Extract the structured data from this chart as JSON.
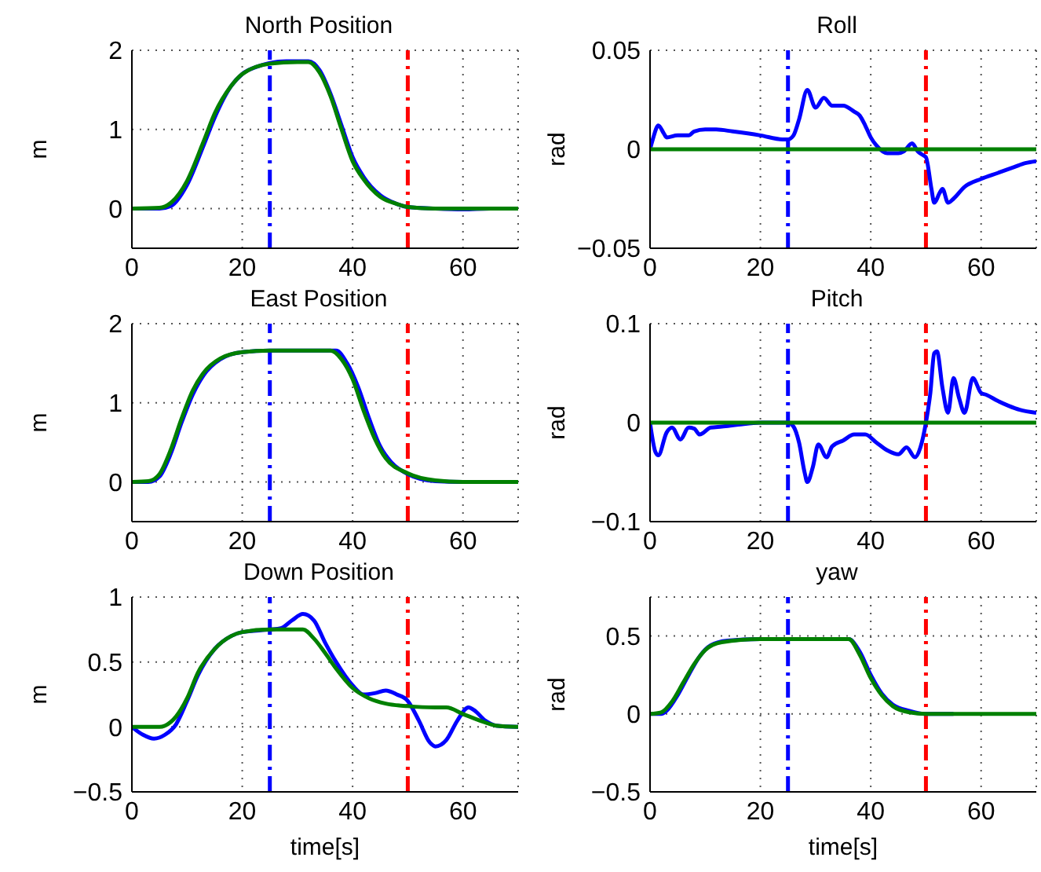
{
  "chart_data": [
    {
      "type": "line",
      "title": "North Position",
      "ylabel": "m",
      "xlim": [
        0,
        70
      ],
      "xticks": [
        0,
        20,
        40,
        60
      ],
      "ylim": [
        -0.5,
        2
      ],
      "yticks": [
        0,
        1,
        2
      ],
      "grid": true,
      "legend": false,
      "line_style": "solid",
      "marker": "none",
      "series": [
        {
          "color": "#0000ff",
          "x": [
            0,
            5,
            7,
            10,
            13,
            15,
            18,
            20,
            23,
            25,
            28,
            32,
            34,
            36,
            38,
            40,
            42,
            45,
            48,
            50,
            55,
            60,
            65,
            70
          ],
          "values": [
            0,
            0,
            0.03,
            0.3,
            0.8,
            1.15,
            1.55,
            1.7,
            1.8,
            1.84,
            1.86,
            1.86,
            1.75,
            1.45,
            1.05,
            0.65,
            0.4,
            0.17,
            0.06,
            0.02,
            0,
            -0.01,
            0,
            0
          ]
        },
        {
          "color": "#008000",
          "x": [
            0,
            5,
            7,
            10,
            13,
            15,
            18,
            20,
            25,
            30,
            32,
            34,
            36,
            38,
            40,
            42,
            45,
            48,
            50,
            55,
            70
          ],
          "values": [
            0,
            0.01,
            0.07,
            0.35,
            0.85,
            1.2,
            1.55,
            1.7,
            1.83,
            1.85,
            1.85,
            1.72,
            1.42,
            1.0,
            0.6,
            0.37,
            0.15,
            0.06,
            0.02,
            0,
            0
          ]
        }
      ],
      "ref_lines": [
        {
          "axis": "x",
          "value": 25,
          "color": "#0000ff",
          "line_style": "dashed"
        },
        {
          "axis": "x",
          "value": 50,
          "color": "#ff0000",
          "line_style": "dashed"
        }
      ]
    },
    {
      "type": "line",
      "title": "Roll",
      "ylabel": "rad",
      "xlim": [
        0,
        70
      ],
      "xticks": [
        0,
        20,
        40,
        60
      ],
      "ylim": [
        -0.05,
        0.05
      ],
      "yticks": [
        -0.05,
        0,
        0.05
      ],
      "grid": true,
      "legend": false,
      "line_style": "solid",
      "marker": "none",
      "series": [
        {
          "color": "#0000ff",
          "x": [
            0,
            0.5,
            1.5,
            2.5,
            3,
            5,
            7,
            8,
            10,
            12,
            15,
            20,
            24,
            25,
            26,
            27,
            28.5,
            30,
            31.5,
            33,
            35,
            37,
            38,
            39,
            40,
            41,
            43,
            45,
            46,
            47.5,
            48.5,
            49.5,
            50,
            51,
            51.5,
            52.5,
            53,
            54,
            55,
            57,
            60,
            63,
            66,
            68,
            70
          ],
          "values": [
            0,
            0.005,
            0.012,
            0.008,
            0.006,
            0.007,
            0.007,
            0.009,
            0.01,
            0.01,
            0.009,
            0.007,
            0.005,
            0.005,
            0.007,
            0.015,
            0.03,
            0.021,
            0.026,
            0.022,
            0.022,
            0.019,
            0.017,
            0.012,
            0.006,
            0.002,
            -0.002,
            -0.002,
            -0.001,
            0.003,
            -0.001,
            -0.003,
            -0.004,
            -0.02,
            -0.027,
            -0.022,
            -0.02,
            -0.027,
            -0.025,
            -0.019,
            -0.015,
            -0.012,
            -0.009,
            -0.007,
            -0.006
          ]
        },
        {
          "color": "#008000",
          "x": [
            0,
            70
          ],
          "values": [
            0,
            0
          ]
        }
      ],
      "ref_lines": [
        {
          "axis": "x",
          "value": 25,
          "color": "#0000ff",
          "line_style": "dashed"
        },
        {
          "axis": "x",
          "value": 50,
          "color": "#ff0000",
          "line_style": "dashed"
        }
      ]
    },
    {
      "type": "line",
      "title": "East Position",
      "ylabel": "m",
      "xlim": [
        0,
        70
      ],
      "xticks": [
        0,
        20,
        40,
        60
      ],
      "ylim": [
        -0.5,
        2
      ],
      "yticks": [
        0,
        1,
        2
      ],
      "grid": true,
      "legend": false,
      "line_style": "solid",
      "marker": "none",
      "series": [
        {
          "color": "#0000ff",
          "x": [
            0,
            3,
            5,
            7,
            9,
            11,
            13,
            16,
            20,
            25,
            37,
            39,
            41,
            43,
            45,
            47,
            50,
            55,
            60,
            70
          ],
          "values": [
            0,
            0,
            0.07,
            0.35,
            0.75,
            1.1,
            1.35,
            1.55,
            1.64,
            1.66,
            1.66,
            1.5,
            1.2,
            0.8,
            0.45,
            0.25,
            0.1,
            0.01,
            0,
            0
          ]
        },
        {
          "color": "#008000",
          "x": [
            0,
            3,
            5,
            7,
            9,
            11,
            13,
            16,
            20,
            25,
            36,
            38,
            40,
            42,
            44,
            46,
            50,
            55,
            60,
            70
          ],
          "values": [
            0,
            0.01,
            0.1,
            0.4,
            0.8,
            1.15,
            1.38,
            1.56,
            1.64,
            1.66,
            1.66,
            1.55,
            1.3,
            0.9,
            0.55,
            0.3,
            0.11,
            0.02,
            0,
            0
          ]
        }
      ],
      "ref_lines": [
        {
          "axis": "x",
          "value": 25,
          "color": "#0000ff",
          "line_style": "dashed"
        },
        {
          "axis": "x",
          "value": 50,
          "color": "#ff0000",
          "line_style": "dashed"
        }
      ]
    },
    {
      "type": "line",
      "title": "Pitch",
      "ylabel": "rad",
      "xlim": [
        0,
        70
      ],
      "xticks": [
        0,
        20,
        40,
        60
      ],
      "ylim": [
        -0.1,
        0.1
      ],
      "yticks": [
        -0.1,
        0,
        0.1
      ],
      "grid": true,
      "legend": false,
      "line_style": "solid",
      "marker": "none",
      "series": [
        {
          "color": "#0000ff",
          "x": [
            0,
            1,
            1.5,
            3,
            4,
            5.5,
            7,
            8,
            9,
            11,
            13,
            16,
            20,
            25,
            26,
            27,
            28,
            28.5,
            29.5,
            30.5,
            32,
            33,
            35,
            37,
            39,
            41,
            43,
            45,
            46.5,
            48,
            49,
            50,
            50.8,
            51.5,
            52,
            53,
            54,
            55,
            56,
            57,
            58.5,
            60,
            61,
            63,
            65,
            67,
            70
          ],
          "values": [
            0,
            -0.03,
            -0.033,
            -0.01,
            -0.005,
            -0.017,
            -0.005,
            -0.006,
            -0.012,
            -0.005,
            -0.004,
            -0.002,
            0,
            0,
            -0.004,
            -0.02,
            -0.05,
            -0.06,
            -0.045,
            -0.022,
            -0.035,
            -0.024,
            -0.018,
            -0.012,
            -0.012,
            -0.02,
            -0.028,
            -0.032,
            -0.025,
            -0.035,
            -0.025,
            0,
            0.03,
            0.07,
            0.072,
            0.035,
            0.01,
            0.045,
            0.025,
            0.01,
            0.045,
            0.03,
            0.028,
            0.022,
            0.017,
            0.013,
            0.01
          ]
        },
        {
          "color": "#008000",
          "x": [
            0,
            70
          ],
          "values": [
            0,
            0
          ]
        }
      ],
      "ref_lines": [
        {
          "axis": "x",
          "value": 25,
          "color": "#0000ff",
          "line_style": "dashed"
        },
        {
          "axis": "x",
          "value": 50,
          "color": "#ff0000",
          "line_style": "dashed"
        }
      ]
    },
    {
      "type": "line",
      "title": "Down Position",
      "xlabel": "time[s]",
      "ylabel": "m",
      "xlim": [
        0,
        70
      ],
      "xticks": [
        0,
        20,
        40,
        60
      ],
      "ylim": [
        -0.5,
        1
      ],
      "yticks": [
        -0.5,
        0,
        0.5,
        1
      ],
      "grid": true,
      "legend": false,
      "line_style": "solid",
      "marker": "none",
      "series": [
        {
          "color": "#0000ff",
          "x": [
            0,
            2,
            4,
            6,
            8,
            10,
            12,
            15,
            18,
            20,
            25,
            27,
            29,
            31,
            33,
            35,
            37,
            40,
            42,
            44,
            46,
            48,
            50,
            52,
            54,
            55,
            57,
            59,
            61,
            62,
            64,
            66,
            70
          ],
          "values": [
            0,
            -0.06,
            -0.09,
            -0.06,
            0.02,
            0.2,
            0.4,
            0.6,
            0.7,
            0.73,
            0.75,
            0.76,
            0.82,
            0.87,
            0.82,
            0.65,
            0.5,
            0.32,
            0.25,
            0.26,
            0.28,
            0.25,
            0.2,
            0.05,
            -0.12,
            -0.15,
            -0.1,
            0.05,
            0.15,
            0.13,
            0.05,
            0.01,
            0
          ]
        },
        {
          "color": "#008000",
          "x": [
            0,
            5,
            6,
            8,
            10,
            12,
            15,
            18,
            20,
            25,
            31,
            33,
            35,
            37,
            40,
            43,
            46,
            50,
            55,
            57,
            60,
            63,
            66,
            70
          ],
          "values": [
            0,
            0,
            0.01,
            0.08,
            0.22,
            0.42,
            0.6,
            0.7,
            0.73,
            0.75,
            0.75,
            0.68,
            0.57,
            0.45,
            0.3,
            0.22,
            0.18,
            0.16,
            0.15,
            0.15,
            0.1,
            0.05,
            0.01,
            0
          ]
        }
      ],
      "ref_lines": [
        {
          "axis": "x",
          "value": 25,
          "color": "#0000ff",
          "line_style": "dashed"
        },
        {
          "axis": "x",
          "value": 50,
          "color": "#ff0000",
          "line_style": "dashed"
        }
      ]
    },
    {
      "type": "line",
      "title": "yaw",
      "xlabel": "time[s]",
      "ylabel": "rad",
      "xlim": [
        0,
        70
      ],
      "xticks": [
        0,
        20,
        40,
        60
      ],
      "ylim": [
        -0.5,
        0.75
      ],
      "yticks": [
        -0.5,
        0,
        0.5
      ],
      "grid": true,
      "legend": false,
      "line_style": "solid",
      "marker": "none",
      "series": [
        {
          "color": "#0000ff",
          "x": [
            0,
            2,
            3,
            5,
            7,
            9,
            11,
            14,
            20,
            25,
            36,
            38,
            40,
            42,
            44,
            47,
            50,
            55
          ],
          "values": [
            0,
            0,
            0.02,
            0.12,
            0.25,
            0.37,
            0.44,
            0.47,
            0.48,
            0.48,
            0.48,
            0.4,
            0.25,
            0.13,
            0.06,
            0.02,
            0,
            0
          ]
        },
        {
          "color": "#008000",
          "x": [
            0,
            2,
            4,
            6,
            8,
            10,
            13,
            20,
            36,
            38,
            40,
            42,
            44,
            47,
            50,
            70
          ],
          "values": [
            0,
            0.01,
            0.08,
            0.2,
            0.32,
            0.41,
            0.46,
            0.48,
            0.48,
            0.38,
            0.23,
            0.12,
            0.05,
            0.01,
            0,
            0
          ]
        }
      ],
      "ref_lines": [
        {
          "axis": "x",
          "value": 25,
          "color": "#0000ff",
          "line_style": "dashed"
        },
        {
          "axis": "x",
          "value": 50,
          "color": "#ff0000",
          "line_style": "dashed"
        }
      ]
    }
  ]
}
